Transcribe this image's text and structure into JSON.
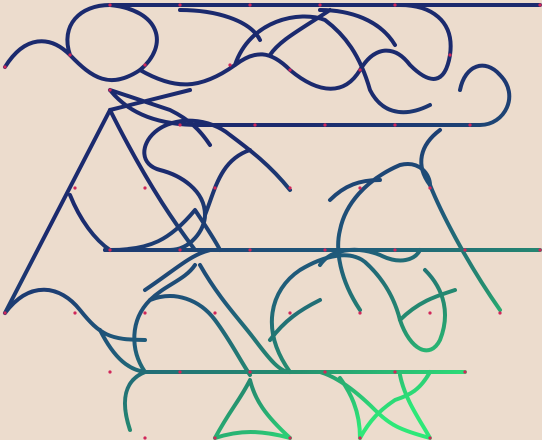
{
  "colors": {
    "background": "#ecdccd",
    "stroke_start": "#1b2a6e",
    "stroke_end": "#2ee878",
    "node": "#d0275a"
  },
  "legend_items": []
}
